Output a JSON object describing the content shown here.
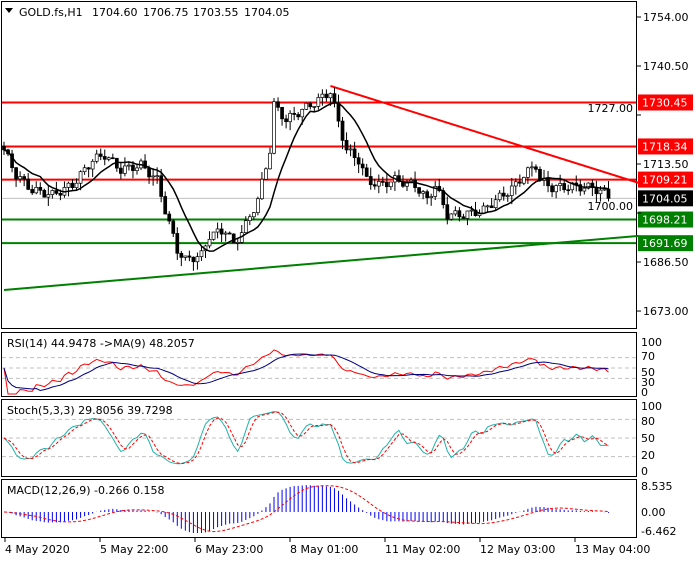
{
  "header": {
    "symbol": "GOLD.fs,H1",
    "open": "1704.60",
    "high": "1706.75",
    "low": "1703.55",
    "close": "1704.05"
  },
  "price_axis": {
    "ticks": [
      "1754.00",
      "1740.50",
      "1727.00",
      "1713.50",
      "1700.00",
      "1686.50",
      "1673.00"
    ]
  },
  "levels": [
    {
      "value": 1730.45,
      "label": "1730.45",
      "color": "#ff0000"
    },
    {
      "value": 1718.34,
      "label": "1718.34",
      "color": "#ff0000"
    },
    {
      "value": 1709.21,
      "label": "1709.21",
      "color": "#ff0000"
    },
    {
      "value": 1698.21,
      "label": "1698.21",
      "color": "#008000"
    },
    {
      "value": 1691.69,
      "label": "1691.69",
      "color": "#008000"
    }
  ],
  "current_price": {
    "value": 1704.05,
    "label": "1704.05"
  },
  "trendlines": [
    {
      "color": "#ff0000",
      "from": {
        "bar": 81,
        "price": 1735.0
      },
      "to": {
        "bar": 155,
        "price": 1708.3
      }
    },
    {
      "color": "#008000",
      "from": {
        "bar": 0,
        "price": 1678.8
      },
      "to": {
        "bar": 155,
        "price": 1693.7
      }
    }
  ],
  "time_axis": {
    "labels": [
      "4 May 2020",
      "5 May 22:00",
      "6 May 23:00",
      "8 May 01:00",
      "11 May 02:00",
      "12 May 03:00",
      "13 May 04:00"
    ]
  },
  "indicators": {
    "rsi": {
      "label": "RSI(14) 44.9478  ->MA(9) 48.2057",
      "ticks": [
        "100",
        "70",
        "50",
        "30",
        "0"
      ]
    },
    "stoch": {
      "label": "Stoch(5,3,3) 29.8056 39.7298",
      "ticks": [
        "100",
        "80",
        "50",
        "20",
        "0"
      ]
    },
    "macd": {
      "label": "MACD(12,26,9) -0.266 0.158",
      "ticks": [
        "8.535",
        "0.00",
        "-6.462"
      ]
    }
  },
  "chart_data": {
    "type": "candlestick",
    "timeframe": "H1",
    "close_keypoints": [
      [
        0,
        1717.4
      ],
      [
        3,
        1710.5
      ],
      [
        7,
        1706.3
      ],
      [
        12,
        1705.0
      ],
      [
        17,
        1707.7
      ],
      [
        22,
        1714.6
      ],
      [
        25,
        1716.0
      ],
      [
        29,
        1711.9
      ],
      [
        34,
        1713.2
      ],
      [
        38,
        1709.1
      ],
      [
        40,
        1700.8
      ],
      [
        43,
        1689.8
      ],
      [
        45,
        1687.1
      ],
      [
        49,
        1688.4
      ],
      [
        51,
        1693.9
      ],
      [
        55,
        1695.3
      ],
      [
        57,
        1691.2
      ],
      [
        60,
        1696.7
      ],
      [
        63,
        1703.6
      ],
      [
        66,
        1717.4
      ],
      [
        67,
        1729.8
      ],
      [
        70,
        1725.6
      ],
      [
        74,
        1728.4
      ],
      [
        78,
        1731.1
      ],
      [
        81,
        1733.5
      ],
      [
        83,
        1725.0
      ],
      [
        85,
        1717.4
      ],
      [
        88,
        1714.6
      ],
      [
        90,
        1709.1
      ],
      [
        93,
        1707.7
      ],
      [
        97,
        1709.1
      ],
      [
        102,
        1707.7
      ],
      [
        105,
        1703.6
      ],
      [
        107,
        1707.7
      ],
      [
        110,
        1699.5
      ],
      [
        114,
        1699.5
      ],
      [
        119,
        1700.8
      ],
      [
        122,
        1703.6
      ],
      [
        124,
        1705.0
      ],
      [
        127,
        1707.7
      ],
      [
        129,
        1710.5
      ],
      [
        132,
        1713.2
      ],
      [
        133,
        1709.1
      ],
      [
        136,
        1707.0
      ],
      [
        141,
        1707.3
      ],
      [
        146,
        1707.0
      ],
      [
        149,
        1705.5
      ],
      [
        150,
        1704.05
      ]
    ],
    "moving_average": "black",
    "ylim": [
      1668,
      1758
    ]
  }
}
